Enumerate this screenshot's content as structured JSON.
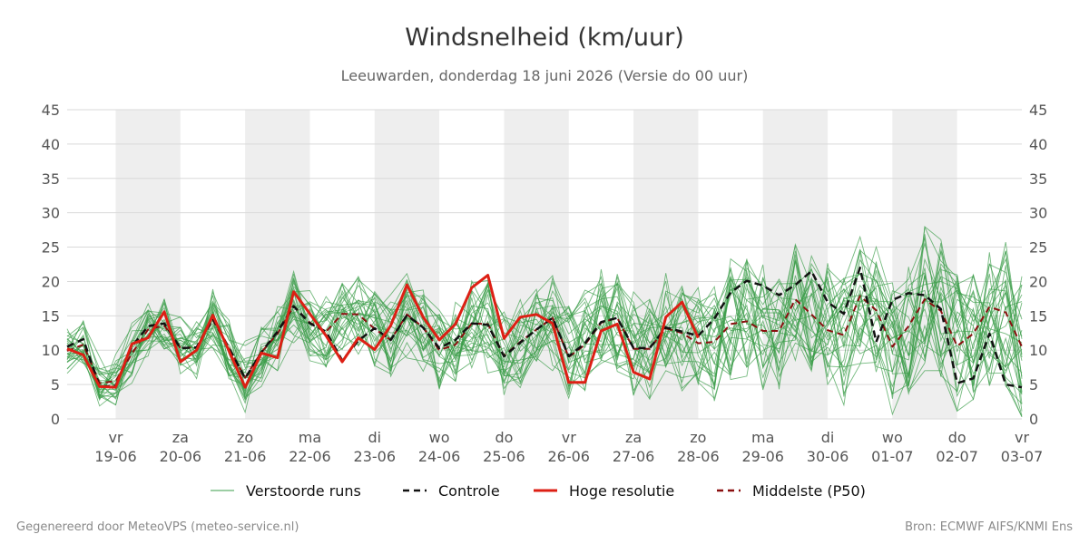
{
  "header": {
    "title": "Windsnelheid (km/uur)",
    "subtitle": "Leeuwarden, donderdag 18 juni 2026 (Versie do 00 uur)"
  },
  "footer": {
    "left": "Gegenereerd door MeteoVPS (meteo-service.nl)",
    "right": "Bron: ECMWF AIFS/KNMI Ens"
  },
  "legend": [
    {
      "label": "Verstoorde runs",
      "color": "#3a9d48",
      "style": "thin"
    },
    {
      "label": "Controle",
      "color": "#111111",
      "style": "dashed"
    },
    {
      "label": "Hoge resolutie",
      "color": "#dd1f14",
      "style": "solid"
    },
    {
      "label": "Middelste (P50)",
      "color": "#8a0f0f",
      "style": "dashed"
    }
  ],
  "chart_data": {
    "type": "line",
    "title": "Windsnelheid (km/uur)",
    "ylim": [
      0,
      45
    ],
    "yticks": [
      0,
      5,
      10,
      15,
      20,
      25,
      30,
      35,
      40,
      45
    ],
    "xlim": [
      -0.75,
      14.0
    ],
    "grid": true,
    "legend_position": "bottom",
    "x_unit": "days after 19-06 00:00",
    "xticks": [
      {
        "x": 0,
        "day": "vr",
        "date": "19-06"
      },
      {
        "x": 1,
        "day": "za",
        "date": "20-06"
      },
      {
        "x": 2,
        "day": "zo",
        "date": "21-06"
      },
      {
        "x": 3,
        "day": "ma",
        "date": "22-06"
      },
      {
        "x": 4,
        "day": "di",
        "date": "23-06"
      },
      {
        "x": 5,
        "day": "wo",
        "date": "24-06"
      },
      {
        "x": 6,
        "day": "do",
        "date": "25-06"
      },
      {
        "x": 7,
        "day": "vr",
        "date": "26-06"
      },
      {
        "x": 8,
        "day": "za",
        "date": "27-06"
      },
      {
        "x": 9,
        "day": "zo",
        "date": "28-06"
      },
      {
        "x": 10,
        "day": "ma",
        "date": "29-06"
      },
      {
        "x": 11,
        "day": "di",
        "date": "30-06"
      },
      {
        "x": 12,
        "day": "wo",
        "date": "01-07"
      },
      {
        "x": 13,
        "day": "do",
        "date": "02-07"
      },
      {
        "x": 14,
        "day": "vr",
        "date": "03-07"
      }
    ],
    "shaded_days": [
      [
        0,
        1
      ],
      [
        2,
        3
      ],
      [
        4,
        5
      ],
      [
        6,
        7
      ],
      [
        8,
        9
      ],
      [
        10,
        11
      ],
      [
        12,
        13
      ]
    ],
    "series": [
      {
        "name": "Hoge resolutie",
        "color": "#dd1f14",
        "points": [
          [
            -0.75,
            10.2
          ],
          [
            -0.5,
            9.3
          ],
          [
            -0.25,
            4.7
          ],
          [
            0.0,
            4.6
          ],
          [
            0.25,
            10.9
          ],
          [
            0.5,
            11.8
          ],
          [
            0.75,
            15.6
          ],
          [
            1.0,
            8.3
          ],
          [
            1.25,
            10.0
          ],
          [
            1.5,
            15.1
          ],
          [
            1.75,
            9.9
          ],
          [
            2.0,
            4.6
          ],
          [
            2.25,
            9.6
          ],
          [
            2.5,
            8.9
          ],
          [
            2.75,
            18.5
          ],
          [
            3.0,
            15.3
          ],
          [
            3.25,
            12.1
          ],
          [
            3.5,
            8.3
          ],
          [
            3.75,
            11.8
          ],
          [
            4.0,
            10.1
          ],
          [
            4.25,
            13.6
          ],
          [
            4.5,
            19.5
          ],
          [
            4.75,
            14.8
          ],
          [
            5.0,
            11.5
          ],
          [
            5.25,
            13.8
          ],
          [
            5.5,
            19.1
          ],
          [
            5.75,
            20.9
          ],
          [
            6.0,
            11.7
          ],
          [
            6.25,
            14.8
          ],
          [
            6.5,
            15.2
          ],
          [
            6.75,
            13.9
          ],
          [
            7.0,
            5.3
          ],
          [
            7.25,
            5.3
          ],
          [
            7.5,
            12.8
          ],
          [
            7.75,
            13.8
          ],
          [
            8.0,
            6.8
          ],
          [
            8.25,
            5.8
          ],
          [
            8.5,
            14.8
          ],
          [
            8.75,
            17.0
          ],
          [
            9.0,
            11.8
          ]
        ]
      },
      {
        "name": "Controle",
        "color": "#111111",
        "points": [
          [
            -0.75,
            10.5
          ],
          [
            -0.5,
            11.6
          ],
          [
            -0.25,
            4.7
          ],
          [
            0.0,
            4.8
          ],
          [
            0.25,
            10.5
          ],
          [
            0.5,
            13.5
          ],
          [
            0.75,
            13.9
          ],
          [
            1.0,
            10.3
          ],
          [
            1.25,
            10.4
          ],
          [
            1.5,
            14.6
          ],
          [
            1.75,
            10.3
          ],
          [
            2.0,
            5.9
          ],
          [
            2.25,
            9.7
          ],
          [
            2.5,
            12.7
          ],
          [
            2.75,
            16.4
          ],
          [
            3.0,
            13.9
          ],
          [
            3.25,
            12.7
          ],
          [
            3.5,
            8.5
          ],
          [
            3.75,
            11.4
          ],
          [
            4.0,
            13.2
          ],
          [
            4.25,
            11.5
          ],
          [
            4.5,
            15.1
          ],
          [
            4.75,
            13.3
          ],
          [
            5.0,
            10.3
          ],
          [
            5.25,
            11.5
          ],
          [
            5.5,
            13.9
          ],
          [
            5.75,
            13.7
          ],
          [
            6.0,
            9.1
          ],
          [
            6.25,
            11.1
          ],
          [
            6.5,
            13.0
          ],
          [
            6.75,
            14.7
          ],
          [
            7.0,
            9.1
          ],
          [
            7.25,
            11.0
          ],
          [
            7.5,
            14.1
          ],
          [
            7.75,
            14.7
          ],
          [
            8.0,
            10.3
          ],
          [
            8.25,
            10.3
          ],
          [
            8.5,
            13.3
          ],
          [
            8.75,
            12.7
          ],
          [
            9.0,
            12.1
          ],
          [
            9.25,
            14.6
          ],
          [
            9.5,
            18.4
          ],
          [
            9.75,
            20.1
          ],
          [
            10.0,
            19.4
          ],
          [
            10.25,
            18.0
          ],
          [
            10.5,
            19.5
          ],
          [
            10.75,
            21.5
          ],
          [
            11.0,
            17.0
          ],
          [
            11.25,
            15.3
          ],
          [
            11.5,
            22.0
          ],
          [
            11.75,
            11.2
          ],
          [
            12.0,
            17.3
          ],
          [
            12.25,
            18.3
          ],
          [
            12.5,
            18.0
          ],
          [
            12.75,
            16.0
          ],
          [
            13.0,
            5.2
          ],
          [
            13.25,
            5.9
          ],
          [
            13.5,
            12.4
          ],
          [
            13.75,
            5.0
          ],
          [
            14.0,
            4.6
          ]
        ]
      },
      {
        "name": "Middelste (P50)",
        "color": "#8a0f0f",
        "points": [
          [
            -0.75,
            9.9
          ],
          [
            -0.5,
            10.8
          ],
          [
            -0.25,
            5.2
          ],
          [
            0.0,
            5.5
          ],
          [
            0.25,
            9.5
          ],
          [
            0.5,
            13.0
          ],
          [
            0.75,
            13.6
          ],
          [
            1.0,
            10.3
          ],
          [
            1.25,
            10.4
          ],
          [
            1.5,
            14.4
          ],
          [
            1.75,
            10.3
          ],
          [
            2.0,
            6.0
          ],
          [
            2.25,
            9.7
          ],
          [
            2.5,
            12.4
          ],
          [
            2.75,
            16.4
          ],
          [
            3.0,
            14.0
          ],
          [
            3.25,
            12.7
          ],
          [
            3.5,
            15.3
          ],
          [
            3.75,
            15.2
          ],
          [
            4.0,
            13.1
          ],
          [
            4.25,
            11.5
          ],
          [
            4.5,
            15.2
          ],
          [
            4.75,
            13.3
          ],
          [
            5.0,
            10.0
          ],
          [
            5.25,
            10.8
          ],
          [
            5.5,
            13.9
          ],
          [
            5.75,
            13.8
          ],
          [
            6.0,
            9.2
          ],
          [
            6.25,
            11.2
          ],
          [
            6.5,
            13.0
          ],
          [
            6.75,
            14.7
          ],
          [
            7.0,
            9.0
          ],
          [
            7.25,
            10.8
          ],
          [
            7.5,
            14.0
          ],
          [
            7.75,
            14.7
          ],
          [
            8.0,
            10.2
          ],
          [
            8.25,
            10.2
          ],
          [
            8.5,
            13.2
          ],
          [
            8.75,
            12.5
          ],
          [
            9.0,
            11.0
          ],
          [
            9.25,
            11.2
          ],
          [
            9.5,
            13.8
          ],
          [
            9.75,
            14.2
          ],
          [
            10.0,
            12.8
          ],
          [
            10.25,
            12.8
          ],
          [
            10.5,
            17.4
          ],
          [
            10.75,
            15.2
          ],
          [
            11.0,
            12.9
          ],
          [
            11.25,
            12.2
          ],
          [
            11.5,
            17.9
          ],
          [
            11.75,
            15.8
          ],
          [
            12.0,
            10.5
          ],
          [
            12.25,
            13.5
          ],
          [
            12.5,
            17.4
          ],
          [
            12.75,
            15.7
          ],
          [
            13.0,
            10.6
          ],
          [
            13.25,
            12.4
          ],
          [
            13.5,
            16.3
          ],
          [
            13.75,
            15.5
          ],
          [
            14.0,
            10.5
          ]
        ]
      }
    ],
    "ensemble_members": 30,
    "ensemble_color": "#3a9d48"
  }
}
